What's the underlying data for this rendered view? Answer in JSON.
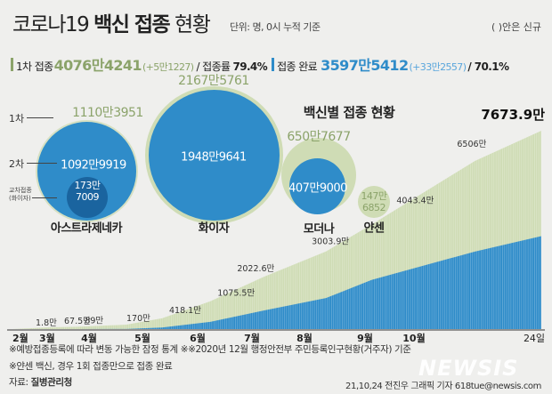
{
  "header": {
    "title_a": "코로나19",
    "title_b": "백신 접종",
    "title_c": "현황",
    "unit": "단위: 명, 0시 누적 기준",
    "legend_note": "( )안은 신규"
  },
  "summary": {
    "first_label": "1차 접종",
    "first_value": "4076만4241",
    "first_new": "(+5만1227)",
    "rate_label": "/ 접종률",
    "first_rate": "79.4%",
    "done_label": "접종 완료",
    "done_value": "3597만5412",
    "done_new": "(+33만2557)",
    "done_rate": "/ 70.1%"
  },
  "colors": {
    "first": "#8ba36a",
    "first_fill": "#cfdcb5",
    "done": "#2f8cc9",
    "cross": "#1a649f",
    "background": "#efefed"
  },
  "vaccines": {
    "title": "백신별 접종 현황",
    "side_labels": {
      "first": "1차",
      "second": "2차",
      "cross": "교차접종",
      "cross_sub": "(화이자)"
    },
    "items": [
      {
        "name": "아스트라제네카",
        "first": "1110만3951",
        "second": "1092만9919",
        "cross_a": "173만",
        "cross_b": "7009"
      },
      {
        "name": "화이자",
        "first": "2167만5761",
        "second": "1948만9641"
      },
      {
        "name": "모더나",
        "first": "650만7677",
        "second": "407만9000"
      },
      {
        "name": "얀센",
        "first_a": "147만",
        "first_b": "6852"
      }
    ]
  },
  "chart_data": {
    "type": "area",
    "stacked": false,
    "x_ticks": [
      "2월",
      "3월",
      "4월",
      "5월",
      "6월",
      "7월",
      "8월",
      "9월",
      "10월",
      "24일"
    ],
    "series": [
      {
        "key": "total",
        "color": "#cfdcb5"
      },
      {
        "key": "completed",
        "color": "#2f8cc9"
      }
    ],
    "points": [
      {
        "date": "2021-02-26",
        "total": 1.8,
        "completed": 0
      },
      {
        "date": "2021-03-15",
        "total": 67.5,
        "completed": 0
      },
      {
        "date": "2021-03-27",
        "total": 89,
        "completed": 1
      },
      {
        "date": "2021-04-22",
        "total": 170,
        "completed": 6
      },
      {
        "date": "2021-05-12",
        "total": 418.1,
        "completed": 60
      },
      {
        "date": "2021-06-08",
        "total": 1075.5,
        "completed": 280
      },
      {
        "date": "2021-07-08",
        "total": 2022.6,
        "completed": 720
      },
      {
        "date": "2021-08-12",
        "total": 3003.9,
        "completed": 1200
      },
      {
        "date": "2021-09-05",
        "total": 4043.4,
        "completed": 1900
      },
      {
        "date": "2021-10-12",
        "total": 6506,
        "completed": 3000
      },
      {
        "date": "2021-10-24",
        "total": 7673.9,
        "completed": 3597.5
      }
    ],
    "data_labels": [
      "1.8만",
      "67.5만",
      "89만",
      "170만",
      "418.1만",
      "1075.5만",
      "2022.6만",
      "3003.9만",
      "4043.4만",
      "6506만",
      "7673.9만"
    ],
    "y_unit": "만"
  },
  "footer": {
    "note1": "※예방접종등록에 따라 변동 가능한 잠정 통계  ※※2020년 12월 행정안전부 주민등록인구현황(거주자) 기준",
    "note2": "※얀센 백신, 경우 1회 접종만으로 접종 완료",
    "source_label": "자료:",
    "source": "질병관리청",
    "credit": "21,10,24 전진우 그래픽 기자 618tue@newsis.com",
    "logo": "NEWSIS"
  }
}
